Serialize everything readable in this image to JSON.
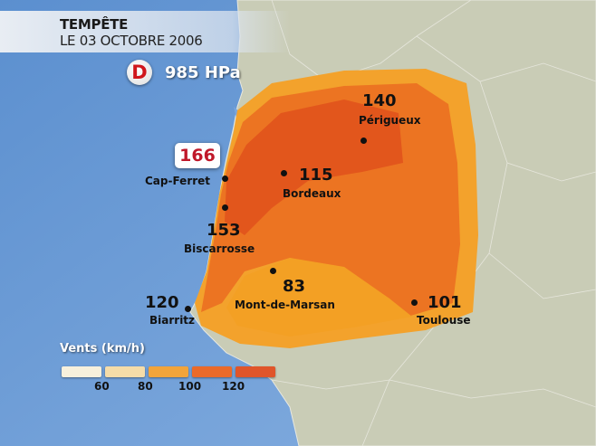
{
  "header": {
    "title": "TEMPÊTE",
    "date": "LE 03 OCTOBRE 2006"
  },
  "pressure": {
    "symbol": "D",
    "value": "985 HPa",
    "color": "#d0161c"
  },
  "max_gust": {
    "value": "166",
    "location": "Cap-Ferret",
    "color": "#c0182a"
  },
  "cities": [
    {
      "name": "Périgueux",
      "value": "140"
    },
    {
      "name": "Bordeaux",
      "value": "115"
    },
    {
      "name": "Cap-Ferret",
      "value": ""
    },
    {
      "name": "Biscarrosse",
      "value": "153"
    },
    {
      "name": "Mont-de-Marsan",
      "value": "83"
    },
    {
      "name": "Biarritz",
      "value": "120"
    },
    {
      "name": "Toulouse",
      "value": "101"
    }
  ],
  "legend": {
    "title": "Vents (km/h)",
    "colors": [
      "#f7f0dc",
      "#f5dca8",
      "#f2a43a",
      "#ea6a2a",
      "#e0552a"
    ],
    "labels": [
      "60",
      "80",
      "100",
      "120"
    ]
  },
  "colors": {
    "sea": "#6f9fd6",
    "land": "#c8cdb8"
  }
}
